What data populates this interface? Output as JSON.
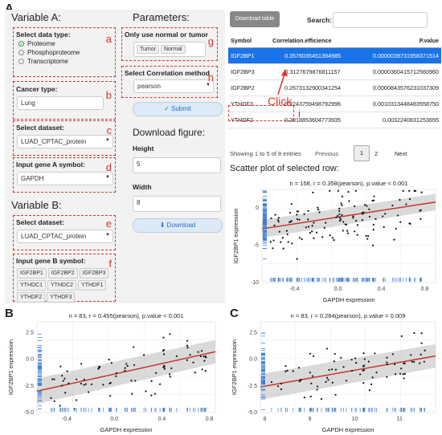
{
  "figure_labels": {
    "a": "A",
    "b": "B",
    "c": "C"
  },
  "annotations": {
    "a": "a",
    "b": "b",
    "c": "c",
    "d": "d",
    "e": "e",
    "f": "f",
    "g": "g",
    "h": "h",
    "i": "i",
    "click": "Click"
  },
  "variable_a": {
    "title": "Variable A:",
    "data_type_label": "Select data type:",
    "data_types": [
      "Proteome",
      "Phosphoproteome",
      "Transcriptome"
    ],
    "selected_type": "Proteome",
    "cancer_label": "Cancer type:",
    "cancer_value": "Lung",
    "dataset_label": "Select dataset:",
    "dataset_value": "LUAD_CPTAC_protein",
    "gene_label": "Input gene A symbol:",
    "gene_value": "GAPDH"
  },
  "variable_b": {
    "title": "Variable B:",
    "dataset_label": "Select dataset:",
    "dataset_value": "LUAD_CPTAC_protein",
    "gene_label": "Input gene B symbol:",
    "genes": [
      "IGF2BP1",
      "IGF2BP2",
      "IGF2BP3",
      "YTHDC1",
      "YTHDC2",
      "YTHDF1",
      "YTHDF2",
      "YTHDF3"
    ]
  },
  "parameters": {
    "title": "Parameters:",
    "normal_label": "Only use normal or tumor",
    "normal_tags": [
      "Tumor",
      "Normal"
    ],
    "method_label": "Select Correlation method",
    "method_value": "pearson",
    "submit": "✓ Submit"
  },
  "download_fig": {
    "title": "Download figure:",
    "height_label": "Height",
    "height_value": "5",
    "width_label": "Width",
    "width_value": "8",
    "download": "⬇ Download"
  },
  "table": {
    "download_btn": "Download table",
    "search_label": "Search:",
    "headers": [
      "Symbol",
      "Correlation.efficience",
      "P.value"
    ],
    "rows": [
      {
        "symbol": "IGF2BP1",
        "corr": "0.3576035451394985",
        "p": "0.0000039731958371514"
      },
      {
        "symbol": "IGF2BP3",
        "corr": "0.3127679876811157",
        "p": "0.0000360415712560960"
      },
      {
        "symbol": "IGF2BP2",
        "corr": "0.2673132900341254",
        "p": "0.0000843576231037309"
      },
      {
        "symbol": "YTHDF3",
        "corr": "0.2243759498792996",
        "p": "0.0010313448483558750"
      },
      {
        "symbol": "YTHDF2",
        "corr": "0.2018853604773935",
        "p": "0.0032240831253655"
      }
    ],
    "footer": "Showing 1 to 5 of 8 entries",
    "previous": "Previous",
    "pages": [
      "1",
      "2"
    ],
    "next": "Next"
  },
  "scatter_title": "Scatter plot of selected row:",
  "chart_data": [
    {
      "type": "scatter",
      "id": "A",
      "title": "n = 158, r = 0.358(pearson), p.value < 0.001",
      "xlabel": "GAPDH expression",
      "ylabel": "IGF2BP1 expression",
      "xticks": [
        "-0.4",
        "0.0",
        "0.4",
        "0.8"
      ],
      "yticks": [
        "0",
        "-5",
        "-10"
      ],
      "xlim": [
        -0.7,
        0.9
      ],
      "ylim": [
        -10,
        2.5
      ],
      "fit": [
        [
          -0.7,
          -2.8
        ],
        [
          0.9,
          0.8
        ]
      ]
    },
    {
      "type": "scatter",
      "id": "B",
      "title": "n = 83, r = 0.455(pearson), p.value < 0.001",
      "xlabel": "GAPDH expression",
      "ylabel": "IGF2BP1 expression",
      "xticks": [
        "-0.4",
        "0.0",
        "0.4",
        "0.8"
      ],
      "yticks": [
        "2.5",
        "0.0",
        "-2.5",
        "-5.0"
      ],
      "xlim": [
        -0.65,
        0.85
      ],
      "ylim": [
        -5,
        3.5
      ],
      "fit": [
        [
          -0.65,
          -3.0
        ],
        [
          0.85,
          0.7
        ]
      ]
    },
    {
      "type": "scatter",
      "id": "C",
      "title": "n = 83, r = 0.284(pearson), p.value = 0.009",
      "xlabel": "GAPDH expression",
      "ylabel": "IGF2BP1 expression",
      "xticks": [
        "8",
        "9",
        "10",
        "11"
      ],
      "yticks": [
        "2.5",
        "0.0",
        "-2.5",
        "-5.0"
      ],
      "xlim": [
        7.9,
        11.8
      ],
      "ylim": [
        -5,
        3.5
      ],
      "fit": [
        [
          7.9,
          -2.6
        ],
        [
          11.8,
          0.3
        ]
      ]
    }
  ],
  "colors": {
    "accent": "#1a73e8",
    "annot": "#d9342b",
    "fit": "#c0392b",
    "rug": "#3a7bd5"
  }
}
